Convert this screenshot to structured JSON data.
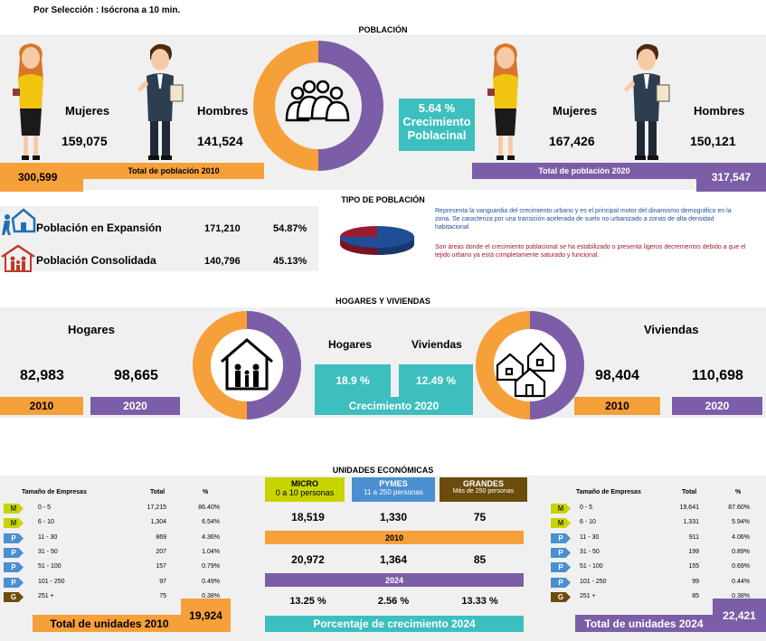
{
  "page_title": "Por Selección : Isócrona a 10 min.",
  "poblacion": {
    "header": "POBLACIÓN",
    "left": {
      "mujeres_label": "Mujeres",
      "mujeres": "159,075",
      "hombres_label": "Hombres",
      "hombres": "141,524",
      "total": "300,599",
      "total_label": "Total de población 2010"
    },
    "right": {
      "mujeres_label": "Mujeres",
      "mujeres": "167,426",
      "hombres_label": "Hombres",
      "hombres": "150,121",
      "total": "317,547",
      "total_label": "Total de población 2020"
    },
    "growth_value": "5.64 %",
    "growth_label1": "Crecimiento",
    "growth_label2": "Poblacinal",
    "donut": {
      "orange_pct": 50,
      "purple_pct": 50
    }
  },
  "tipo": {
    "header": "TIPO DE POBLACIÓN",
    "rows": [
      {
        "label": "Población en Expansión",
        "value": "171,210",
        "pct": "54.87%"
      },
      {
        "label": "Población Consolidada",
        "value": "140,796",
        "pct": "45.13%"
      }
    ],
    "desc_blue": "Representa la vanguardia del crecimiento urbano y es el principal motor del dinamismo demográfico en la zona. Se caracteriza por una transición acelerada de suelo no urbanizado a zonas de alta densidad habitacional",
    "desc_red": "Son áreas donde el crecimiento poblacional se ha estabilizado o presenta ligeros decrementos debido a que el tejido urbano ya está completamente saturado y funcional.",
    "colors": {
      "blue": "#1f4e99",
      "red": "#9b1c2e"
    }
  },
  "hogares": {
    "header": "HOGARES Y VIVIENDAS",
    "hogares_label": "Hogares",
    "hogares_2010": "82,983",
    "hogares_2020": "98,665",
    "year_2010": "2010",
    "year_2020": "2020",
    "mid_hogares_label": "Hogares",
    "mid_viviendas_label": "Viviendas",
    "mid_hogares_pct": "18.9 %",
    "mid_viviendas_pct": "12.49 %",
    "mid_growth_label": "Crecimiento 2020",
    "viviendas_label": "Viviendas",
    "viviendas_2010": "98,404",
    "viviendas_2020": "110,698"
  },
  "unidades": {
    "header": "UNIDADES ECONÓMICAS",
    "table_headers": {
      "size": "Tamaño de Empresas",
      "total": "Total",
      "pct": "%"
    },
    "left_rows": [
      {
        "badge": "M",
        "range": "0 - 5",
        "total": "17,215",
        "pct": "86.40%"
      },
      {
        "badge": "M",
        "range": "6 - 10",
        "total": "1,304",
        "pct": "6.54%"
      },
      {
        "badge": "P",
        "range": "11 - 30",
        "total": "869",
        "pct": "4.36%"
      },
      {
        "badge": "P",
        "range": "31 - 50",
        "total": "207",
        "pct": "1.04%"
      },
      {
        "badge": "P",
        "range": "51 - 100",
        "total": "157",
        "pct": "0.79%"
      },
      {
        "badge": "P",
        "range": "101 - 250",
        "total": "97",
        "pct": "0.49%"
      },
      {
        "badge": "G",
        "range": "251 +",
        "total": "75",
        "pct": "0.38%"
      }
    ],
    "left_total_label": "Total de unidades 2010",
    "left_total": "19,924",
    "right_rows": [
      {
        "badge": "M",
        "range": "0 - 5",
        "total": "19,641",
        "pct": "87.60%"
      },
      {
        "badge": "M",
        "range": "6 - 10",
        "total": "1,331",
        "pct": "5.94%"
      },
      {
        "badge": "P",
        "range": "11 - 30",
        "total": "911",
        "pct": "4.06%"
      },
      {
        "badge": "P",
        "range": "31 - 50",
        "total": "199",
        "pct": "0.89%"
      },
      {
        "badge": "P",
        "range": "51 - 100",
        "total": "155",
        "pct": "0.69%"
      },
      {
        "badge": "P",
        "range": "101 - 250",
        "total": "99",
        "pct": "0.44%"
      },
      {
        "badge": "G",
        "range": "251 +",
        "total": "85",
        "pct": "0.38%"
      }
    ],
    "right_total_label": "Total de unidades 2024",
    "right_total": "22,421",
    "cats": [
      {
        "title": "MICRO",
        "sub": "0 a 10 personas"
      },
      {
        "title": "PYMES",
        "sub": "11 a 250 personas"
      },
      {
        "title": "GRANDES",
        "sub": "Más de 250 personas"
      }
    ],
    "row2010": [
      "18,519",
      "1,330",
      "75"
    ],
    "label2010": "2010",
    "row2024": [
      "20,972",
      "1,364",
      "85"
    ],
    "label2024": "2024",
    "growth": [
      "13.25 %",
      "2.56 %",
      "13.33 %"
    ],
    "growth_label": "Porcentaje de crecimiento 2024"
  }
}
